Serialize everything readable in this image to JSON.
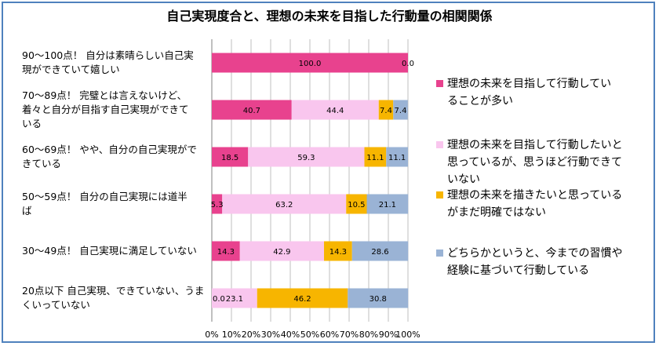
{
  "chart_data": {
    "type": "bar",
    "orientation": "horizontal",
    "stacked": "percent",
    "title": "自己実現度合と、理想の未来を目指した行動量の相関関係",
    "xlabel": "",
    "ylabel": "",
    "xlim": [
      0,
      100
    ],
    "x_ticks": [
      "0%",
      "10%",
      "20%",
      "30%",
      "40%",
      "50%",
      "60%",
      "70%",
      "80%",
      "90%",
      "100%"
    ],
    "grid": true,
    "legend_position": "right",
    "categories": [
      "90〜100点！ 自分は素晴らしい自己実現ができていて嬉しい",
      "70〜89点！ 完璧とは言えないけど、着々と自分が目指す自己実現ができている",
      "60〜69点！ やや、自分の自己実現ができている",
      "50〜59点！ 自分の自己実現には道半ば",
      "30〜49点！ 自己実現に満足していない",
      "20点以下 自己実現、できていない、うまくいっていない"
    ],
    "category_label_lines": [
      [
        "90〜100点！ 自分は素晴らしい自己実",
        "現ができていて嬉しい"
      ],
      [
        "70〜89点！ 完璧とは言えないけど、",
        "着々と自分が目指す自己実現ができて",
        "いる"
      ],
      [
        "60〜69点！ やや、自分の自己実現がで",
        "きている"
      ],
      [
        "50〜59点！ 自分の自己実現には道半",
        "ば"
      ],
      [
        "30〜49点！ 自己実現に満足していない"
      ],
      [
        "20点以下 自己実現、できていない、うま",
        "くいっていない"
      ]
    ],
    "series": [
      {
        "name": "理想の未来を目指して行動していることが多い",
        "legend_lines": [
          "理想の未来を目指して行動してい",
          "ることが多い"
        ],
        "color": "#e8428e",
        "values": [
          100.0,
          40.7,
          18.5,
          5.3,
          14.3,
          0.0
        ],
        "labels": [
          "100.0",
          "40.7",
          "18.5",
          "5.3",
          "14.3",
          "0.0"
        ]
      },
      {
        "name": "理想の未来を目指して行動したいと思っているが、思うほど行動できていない",
        "legend_lines": [
          "理想の未来を目指して行動したいと",
          "思っているが、思うほど行動できて",
          "いない"
        ],
        "color": "#f9c6ee",
        "values": [
          0.0,
          44.4,
          59.3,
          63.2,
          42.9,
          23.1
        ],
        "labels": [
          "",
          "44.4",
          "59.3",
          "63.2",
          "42.9",
          "23.1"
        ]
      },
      {
        "name": "理想の未来を描きたいと思っているがまだ明確ではない",
        "legend_lines": [
          "理想の未来を描きたいと思っている",
          "がまだ明確ではない"
        ],
        "color": "#f7b500",
        "values": [
          0.0,
          7.4,
          11.1,
          10.5,
          14.3,
          46.2
        ],
        "labels": [
          "",
          "7.4",
          "11.1",
          "10.5",
          "14.3",
          "46.2"
        ]
      },
      {
        "name": "どちらかというと、今までの習慣や経験に基づいて行動している",
        "legend_lines": [
          "どちらかというと、今までの習慣や",
          "経験に基づいて行動している"
        ],
        "color": "#9ab3d5",
        "values": [
          0.0,
          7.4,
          11.1,
          21.1,
          28.6,
          30.8
        ],
        "labels": [
          "0.0",
          "7.4",
          "11.1",
          "21.1",
          "28.6",
          "30.8"
        ]
      }
    ]
  }
}
